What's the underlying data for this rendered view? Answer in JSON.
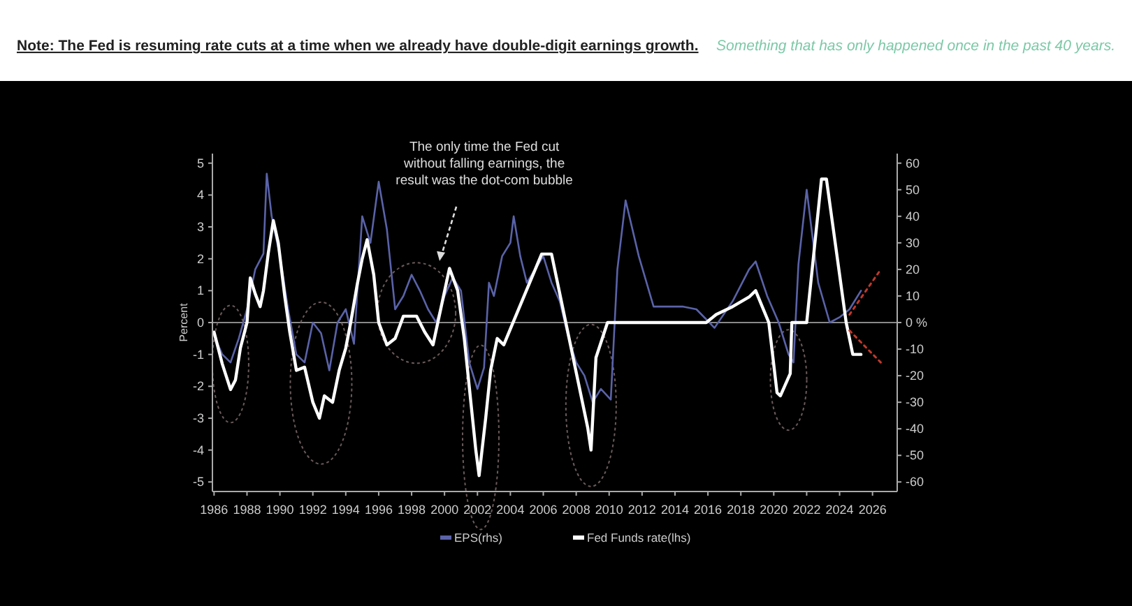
{
  "chart_data": {
    "type": "line",
    "title": "Note: The Fed is resuming rate cuts at a time when we already have double-digit earnings growth.",
    "subtitle": "Something that has only happened once in the past 40 years.",
    "ylabel": "Percent",
    "annotations": [
      "The only time the Fed cut without falling earnings, the result was the dot-com bubble"
    ],
    "xlim": [
      1985.9,
      2027.5
    ],
    "xticks": [
      1986,
      1988,
      1990,
      1992,
      1994,
      1996,
      1998,
      2000,
      2002,
      2004,
      2006,
      2008,
      2010,
      2012,
      2014,
      2016,
      2018,
      2020,
      2022,
      2024,
      2026
    ],
    "ylim": [
      -5.3,
      5.3
    ],
    "yticks": [
      -5,
      -4,
      -3,
      -2,
      -1,
      0,
      1,
      2,
      3,
      4,
      5
    ],
    "y2lim": [
      -63.6,
      63.6
    ],
    "y2ticks": [
      -60,
      -50,
      -40,
      -30,
      -20,
      -10,
      {
        "value": 0,
        "label": "0 %"
      },
      10,
      20,
      30,
      40,
      50,
      60
    ],
    "ref_lines": [
      {
        "axis": "y",
        "value": 0,
        "color": "#8a8a8a"
      }
    ],
    "legend": "bottom",
    "grid": false,
    "series": [
      {
        "name": "EPS(rhs)",
        "color": "#5a63a8",
        "axis": "y2",
        "x": [
          1986,
          1986.5,
          1987,
          1987.5,
          1988,
          1988.5,
          1989,
          1989.2,
          1989.5,
          1990,
          1990.5,
          1991,
          1991.5,
          1992,
          1992.5,
          1993,
          1993.5,
          1994,
          1994.5,
          1995,
          1995.5,
          1996,
          1996.5,
          1997,
          1997.5,
          1998,
          1998.5,
          1999,
          1999.5,
          2000,
          2000.5,
          2001,
          2001.5,
          2002,
          2002.4,
          2002.7,
          2003,
          2003.5,
          2004,
          2004.2,
          2004.6,
          2005,
          2005.5,
          2006,
          2006.5,
          2007,
          2007.5,
          2008,
          2008.5,
          2009,
          2009.5,
          2010.1,
          2010.5,
          2011,
          2011.8,
          2012.7,
          2013.5,
          2014.5,
          2015.3,
          2016.4,
          2017.5,
          2018.5,
          2018.9,
          2019.6,
          2020.3,
          2020.9,
          2021.2,
          2021.5,
          2022,
          2022.7,
          2023.4,
          2024,
          2024.6,
          2025.3
        ],
        "values": [
          -5,
          -12,
          -15,
          -6,
          5,
          20,
          26,
          56,
          40,
          25,
          5,
          -12,
          -15,
          0,
          -4,
          -18,
          0,
          5,
          -8,
          40,
          30,
          53,
          35,
          5,
          10,
          18,
          12,
          5,
          0,
          10,
          17,
          12,
          -15,
          -25,
          -17,
          15,
          10,
          25,
          30,
          40,
          25,
          15,
          20,
          25,
          15,
          8,
          -5,
          -15,
          -20,
          -30,
          -25,
          -29,
          20,
          46,
          25,
          6,
          6,
          6,
          5,
          -2,
          8,
          20,
          23,
          10,
          0,
          -12,
          -15,
          22,
          50,
          15,
          0,
          2,
          5,
          12
        ]
      },
      {
        "name": "Fed Funds rate(lhs)",
        "color": "#ffffff",
        "x": [
          1986,
          1986.5,
          1987,
          1987.3,
          1987.6,
          1988,
          1988.2,
          1988.5,
          1988.8,
          1989,
          1989.3,
          1989.6,
          1989.9,
          1990.3,
          1990.6,
          1991,
          1991.5,
          1992,
          1992.4,
          1992.7,
          1993.2,
          1993.6,
          1994,
          1994.3,
          1994.7,
          1995,
          1995.3,
          1995.7,
          1996,
          1996.5,
          1997,
          1997.5,
          1998.3,
          1998.8,
          1999.3,
          1999.8,
          2000.3,
          2000.8,
          2001.2,
          2001.6,
          2001.9,
          2002.1,
          2002.5,
          2002.8,
          2003.2,
          2003.6,
          2004,
          2005.9,
          2006.5,
          2008.7,
          2008.9,
          2009.2,
          2009.9,
          2015.9,
          2016.5,
          2017.5,
          2018.5,
          2018.9,
          2019.7,
          2020.2,
          2020.4,
          2021,
          2021.1,
          2022,
          2022.9,
          2023.2,
          2024.4,
          2024.8,
          2025.3
        ],
        "values": [
          -0.3,
          -1.3,
          -2.1,
          -1.8,
          -0.8,
          0,
          1.4,
          0.9,
          0.5,
          1,
          2.2,
          3.2,
          2.5,
          0.8,
          -0.3,
          -1.5,
          -1.4,
          -2.5,
          -3,
          -2.3,
          -2.5,
          -1.5,
          -0.8,
          0,
          1.2,
          2,
          2.6,
          1.5,
          0,
          -0.7,
          -0.5,
          0.2,
          0.2,
          -0.3,
          -0.7,
          0.5,
          1.7,
          1,
          -0.5,
          -2.5,
          -4,
          -4.8,
          -3,
          -1.5,
          -0.5,
          -0.7,
          -0.2,
          2.15,
          2.15,
          -3.3,
          -4,
          -1.1,
          0,
          0,
          0.25,
          0.5,
          0.8,
          1,
          0,
          -2.2,
          -2.3,
          -1.6,
          0,
          0,
          4.5,
          4.5,
          0,
          -1,
          -1
        ]
      },
      {
        "color": "#c0392b",
        "axis": "y2",
        "line_style": "dotted",
        "x": [
          2024.6,
          2026.5
        ],
        "values": [
          3,
          20
        ]
      },
      {
        "color": "#c0392b",
        "axis": "y2",
        "line_style": "dotted",
        "x": [
          2024.6,
          2026.5
        ],
        "values": [
          -3,
          -15
        ]
      }
    ]
  }
}
